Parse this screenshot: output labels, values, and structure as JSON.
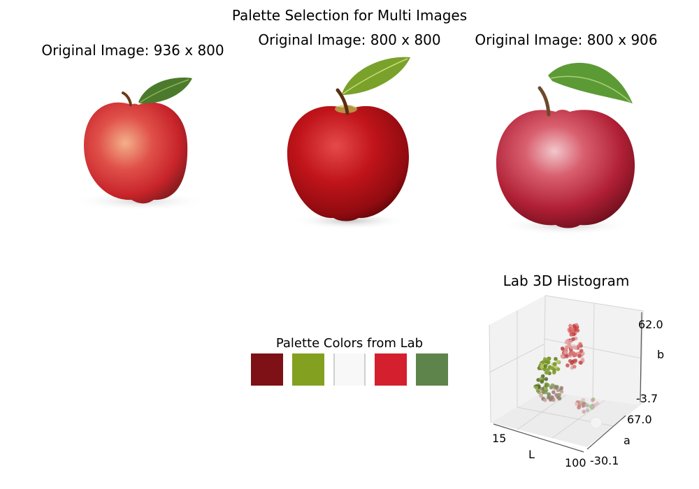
{
  "figure": {
    "title": "Palette Selection for Multi Images"
  },
  "images": [
    {
      "title": "Original Image: 936 x 800",
      "depiction": "red-yellow apple with leaf"
    },
    {
      "title": "Original Image: 800 x 800",
      "depiction": "deep red apple with leaf"
    },
    {
      "title": "Original Image: 800 x 906",
      "depiction": "crimson apple with large leaf"
    }
  ],
  "palette": {
    "title": "Palette Colors from Lab",
    "colors": [
      "#7d1116",
      "#83a020",
      "#f8f8f8",
      "#d41f2e",
      "#5e844b"
    ]
  },
  "chart_data": {
    "type": "scatter",
    "projection": "3d",
    "title": "Lab 3D Histogram",
    "xlabel": "L",
    "ylabel": "a",
    "zlabel": "b",
    "xticks": [
      "15",
      "100"
    ],
    "yticks": [
      "-30.1",
      "67.0"
    ],
    "zticks": [
      "-3.7",
      "62.0"
    ],
    "xlim": [
      15,
      100
    ],
    "ylim": [
      -30.1,
      67.0
    ],
    "zlim": [
      -3.7,
      62.0
    ],
    "grid": true,
    "points_note": "Clusters of colored points in Lab space: greens at lower a, reds/pinks at high a and b"
  }
}
